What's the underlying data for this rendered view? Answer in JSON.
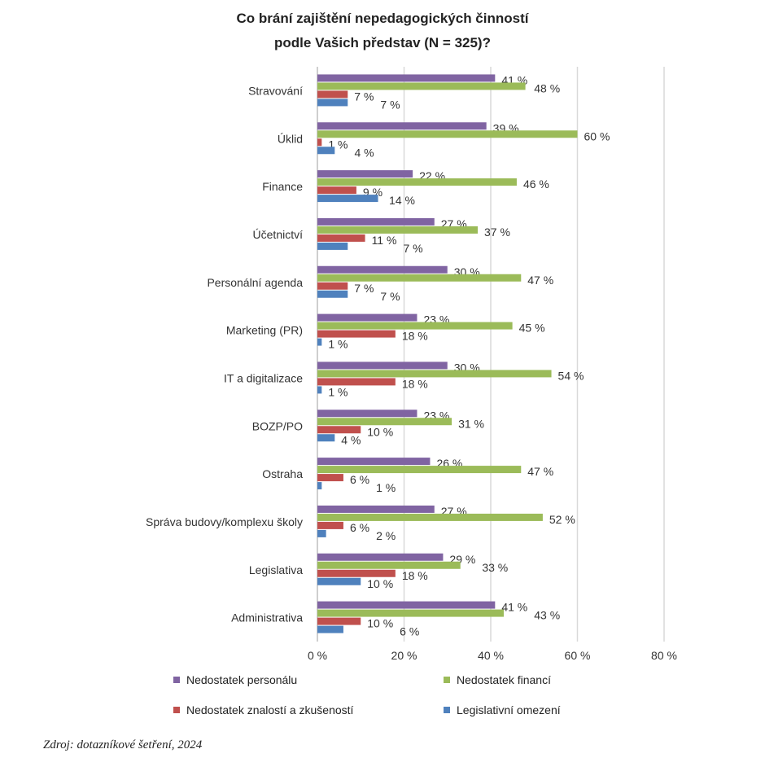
{
  "chart_data": {
    "type": "bar",
    "orientation": "horizontal",
    "title": "Co brání zajištění nepedagogických činností podle Vašich představ (N = 325)?",
    "title_lines": [
      "Co brání zajištění nepedagogických činností",
      "podle Vašich představ (N = 325)?"
    ],
    "categories": [
      "Stravování",
      "Úklid",
      "Finance",
      "Účetnictví",
      "Personální agenda",
      "Marketing (PR)",
      "IT a digitalizace",
      "BOZP/PO",
      "Ostraha",
      "Správa budovy/komplexu školy",
      "Legislativa",
      "Administrativa"
    ],
    "series": [
      {
        "name": "Nedostatek personálu",
        "color": "#8064a2",
        "values": [
          41,
          39,
          22,
          27,
          30,
          23,
          30,
          23,
          26,
          27,
          29,
          41
        ]
      },
      {
        "name": "Nedostatek financí",
        "color": "#9bbb59",
        "values": [
          48,
          60,
          46,
          37,
          47,
          45,
          54,
          31,
          47,
          52,
          33,
          43
        ]
      },
      {
        "name": "Nedostatek znalostí a zkušeností",
        "color": "#c0504d",
        "values": [
          7,
          1,
          9,
          11,
          7,
          18,
          18,
          10,
          6,
          6,
          18,
          10
        ]
      },
      {
        "name": "Legislativní omezení",
        "color": "#4f81bd",
        "values": [
          7,
          4,
          14,
          7,
          7,
          1,
          1,
          4,
          1,
          2,
          10,
          6
        ]
      }
    ],
    "xlim": [
      0,
      80
    ],
    "xticks": [
      "0 %",
      "20 %",
      "40 %",
      "60 %",
      "80 %"
    ],
    "value_suffix": " %",
    "grid": true,
    "legend_position": "bottom"
  },
  "source": "Zdroj: dotazníkové šetření, 2024"
}
